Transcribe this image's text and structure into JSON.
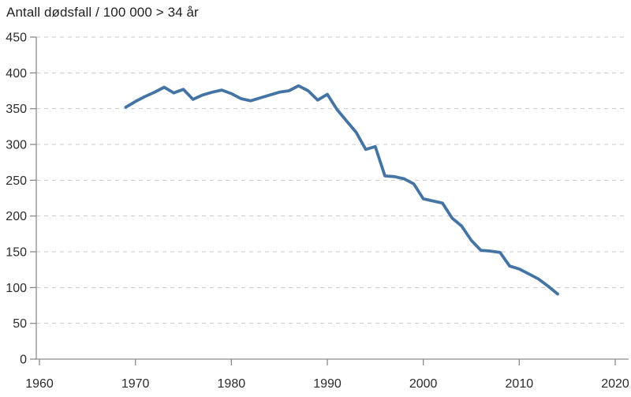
{
  "page": {
    "background": "#ffffff"
  },
  "chart_data": {
    "type": "line",
    "title": "Antall dødsfall / 100 000 > 34 år",
    "x": [
      1969,
      1970,
      1971,
      1972,
      1973,
      1974,
      1975,
      1976,
      1977,
      1978,
      1979,
      1980,
      1981,
      1982,
      1983,
      1984,
      1985,
      1986,
      1987,
      1988,
      1989,
      1990,
      1991,
      1992,
      1993,
      1994,
      1995,
      1996,
      1997,
      1998,
      1999,
      2000,
      2001,
      2002,
      2003,
      2004,
      2005,
      2006,
      2007,
      2008,
      2009,
      2010,
      2011,
      2012,
      2013,
      2014
    ],
    "series": [
      {
        "name": "Antall dødsfall / 100 000 > 34 år",
        "values": [
          352,
          360,
          367,
          373,
          380,
          372,
          377,
          363,
          369,
          373,
          376,
          371,
          364,
          361,
          365,
          369,
          373,
          375,
          382,
          375,
          362,
          370,
          349,
          333,
          317,
          293,
          297,
          256,
          255,
          252,
          245,
          224,
          221,
          218,
          197,
          186,
          166,
          152,
          151,
          149,
          130,
          126,
          119,
          112,
          102,
          91
        ]
      }
    ],
    "xlabel": "",
    "ylabel": "",
    "xlim": [
      1960,
      2020
    ],
    "ylim": [
      0,
      450
    ],
    "x_ticks": [
      1960,
      1970,
      1980,
      1990,
      2000,
      2010,
      2020
    ],
    "y_ticks": [
      0,
      50,
      100,
      150,
      200,
      250,
      300,
      350,
      400,
      450
    ],
    "grid": "horizontal-dashed",
    "legend_position": "none",
    "colors": {
      "line": "#4474a4",
      "axis": "#8c8c8c",
      "gridline": "#c9c9c9",
      "tick_label": "#2b2b2b"
    }
  }
}
